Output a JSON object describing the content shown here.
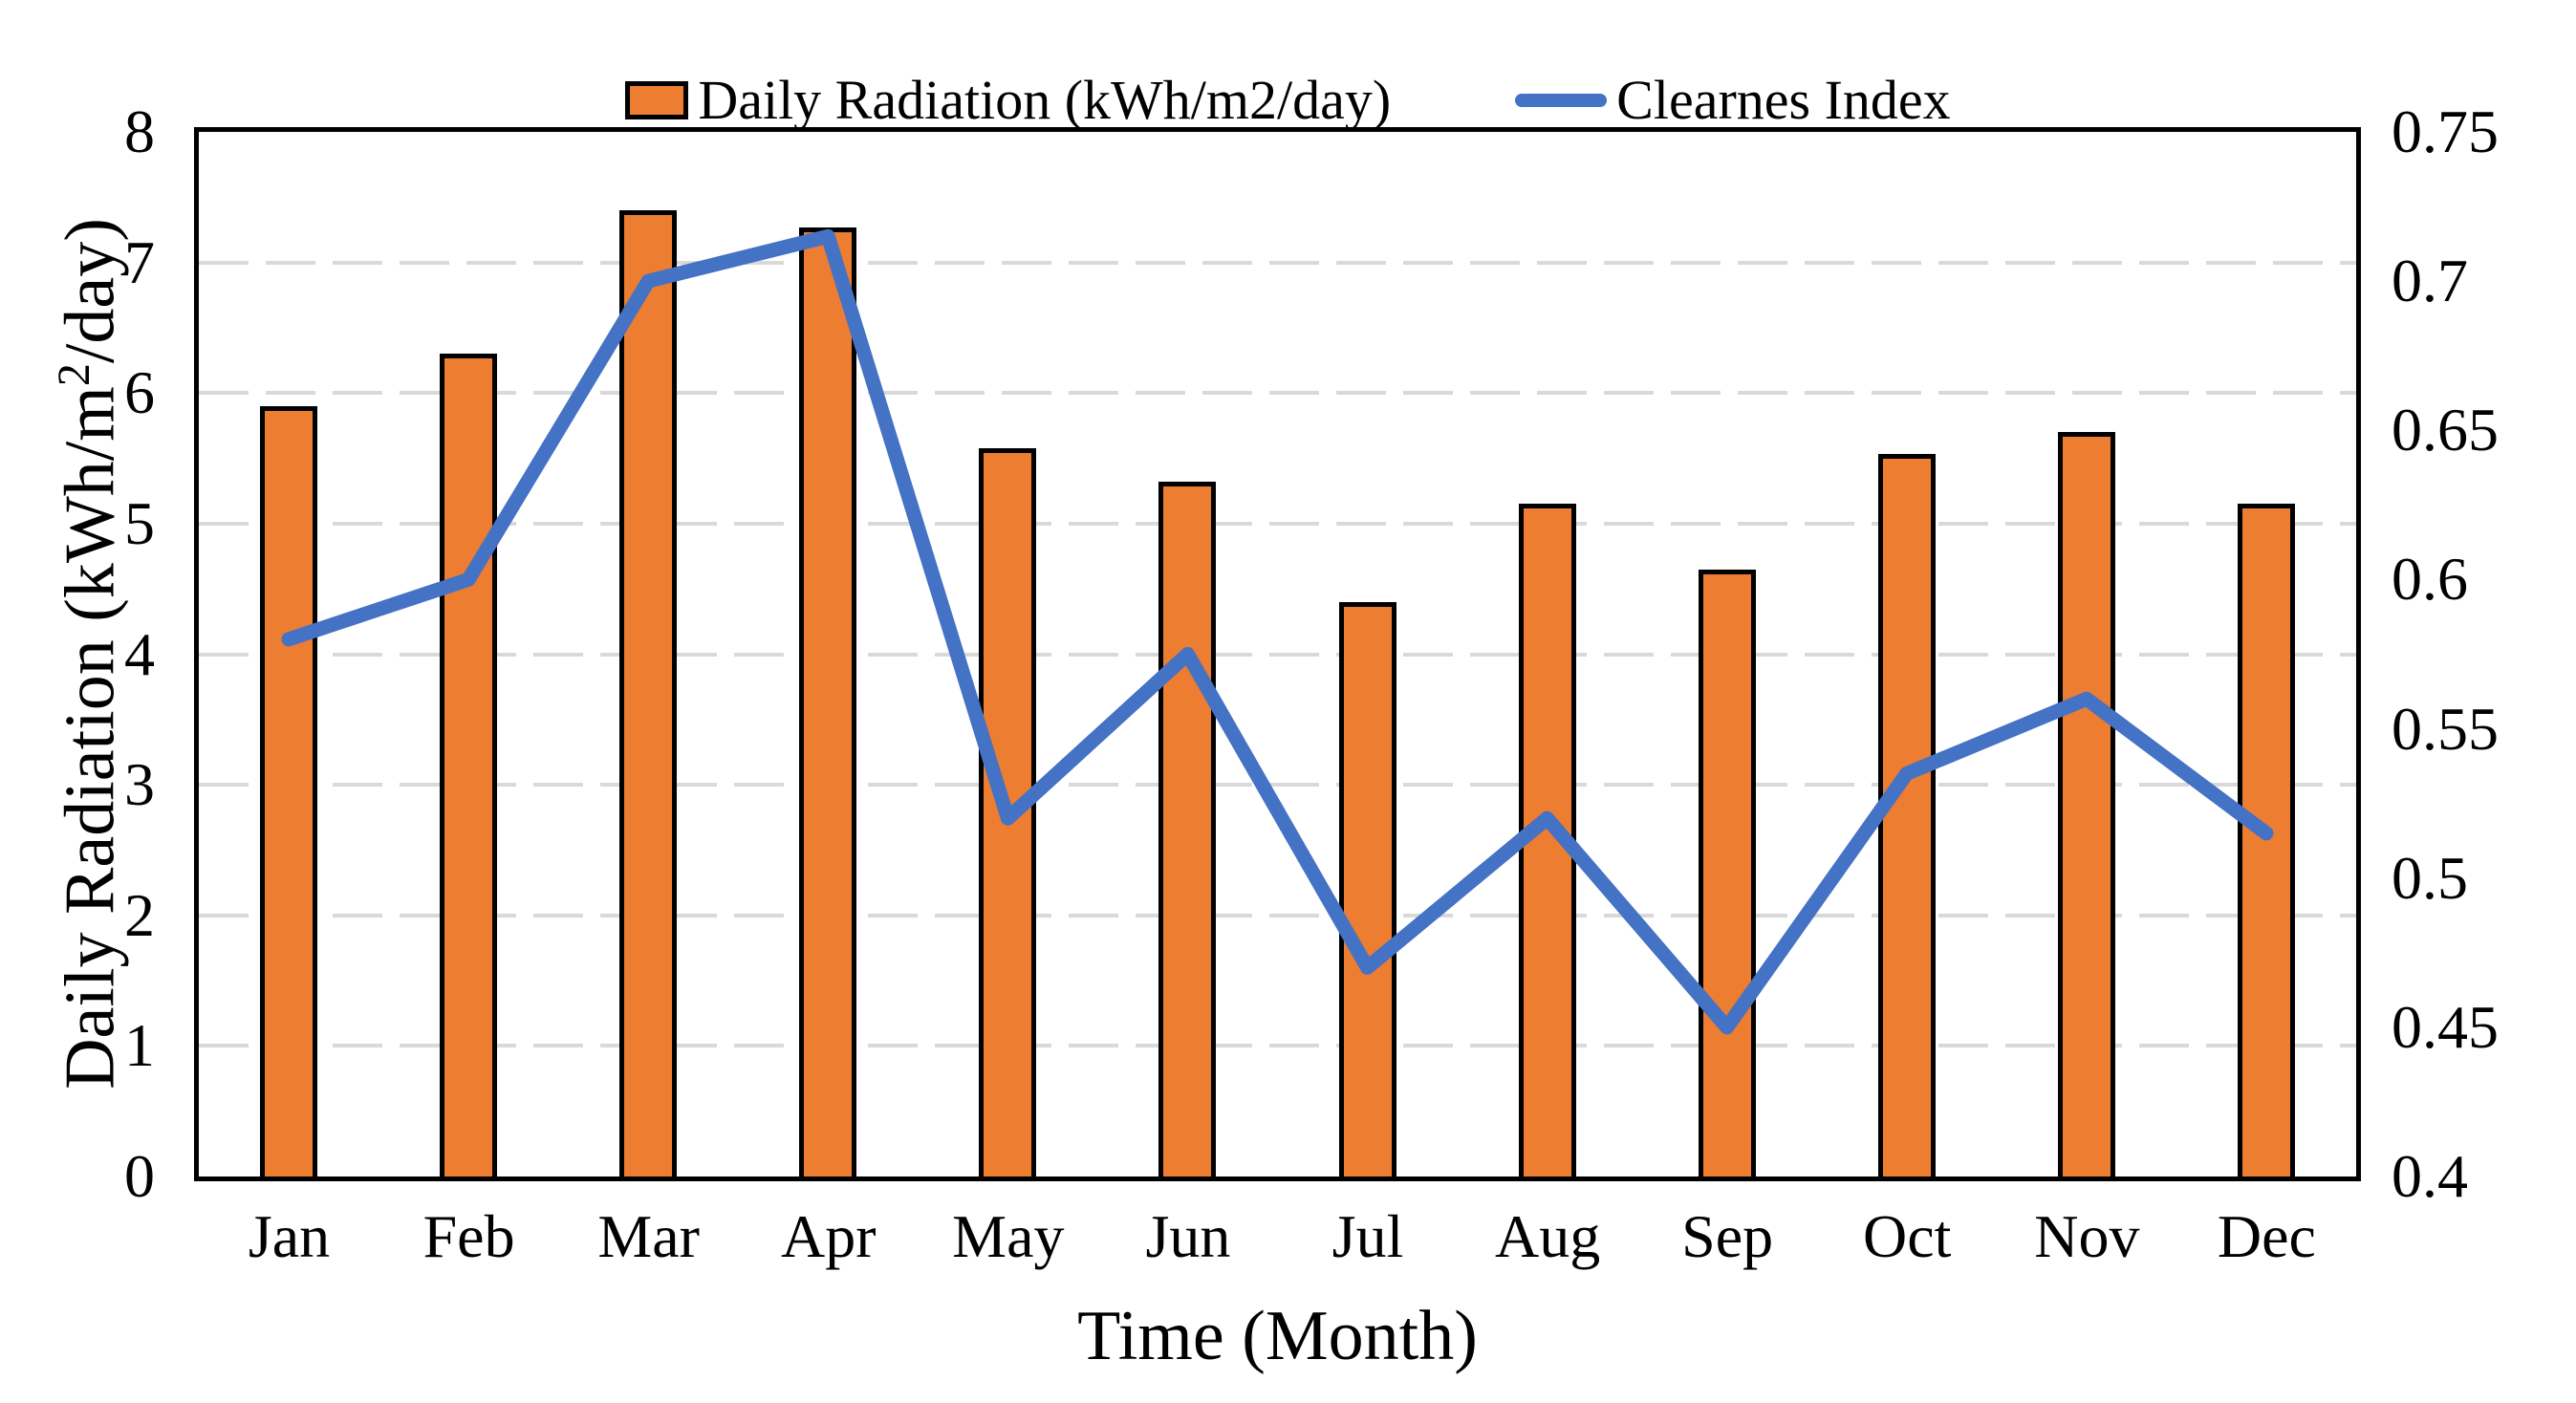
{
  "chart_data": {
    "type": "bar+line combo",
    "categories": [
      "Jan",
      "Feb",
      "Mar",
      "Apr",
      "May",
      "Jun",
      "Jul",
      "Aug",
      "Sep",
      "Oct",
      "Nov",
      "Dec"
    ],
    "series": [
      {
        "name": "Daily Radiation (kWh/m2/day)",
        "type": "bar",
        "axis": "left",
        "color": "#ED7D31",
        "border_color": "#000000",
        "values": [
          5.9,
          6.3,
          7.4,
          7.27,
          5.58,
          5.32,
          4.4,
          5.15,
          4.65,
          5.53,
          5.7,
          5.15
        ]
      },
      {
        "name": "Clearnes Index",
        "type": "line",
        "axis": "right",
        "color": "#4472C4",
        "values": [
          0.58,
          0.6,
          0.7,
          0.715,
          0.52,
          0.575,
          0.47,
          0.52,
          0.45,
          0.535,
          0.56,
          0.515
        ]
      }
    ],
    "left_axis": {
      "title": "Daily Radiation (kWh/m2/day)",
      "title_prefix": "Daily Radiation (kWh/m",
      "title_sup": "2",
      "title_suffix": "/day)",
      "min": 0,
      "max": 8,
      "step": 1,
      "ticks": [
        "0",
        "1",
        "2",
        "3",
        "4",
        "5",
        "6",
        "7",
        "8"
      ]
    },
    "right_axis": {
      "min": 0.4,
      "max": 0.75,
      "step": 0.05,
      "ticks": [
        "0.4",
        "0.45",
        "0.5",
        "0.55",
        "0.6",
        "0.65",
        "0.7",
        "0.75"
      ]
    },
    "x_axis": {
      "title": "Time (Month)"
    },
    "grid": {
      "color": "#D9D9D9",
      "style": "dashed",
      "at_left_values": [
        1,
        2,
        3,
        4,
        5,
        6,
        7
      ]
    },
    "legend_position": "top"
  }
}
